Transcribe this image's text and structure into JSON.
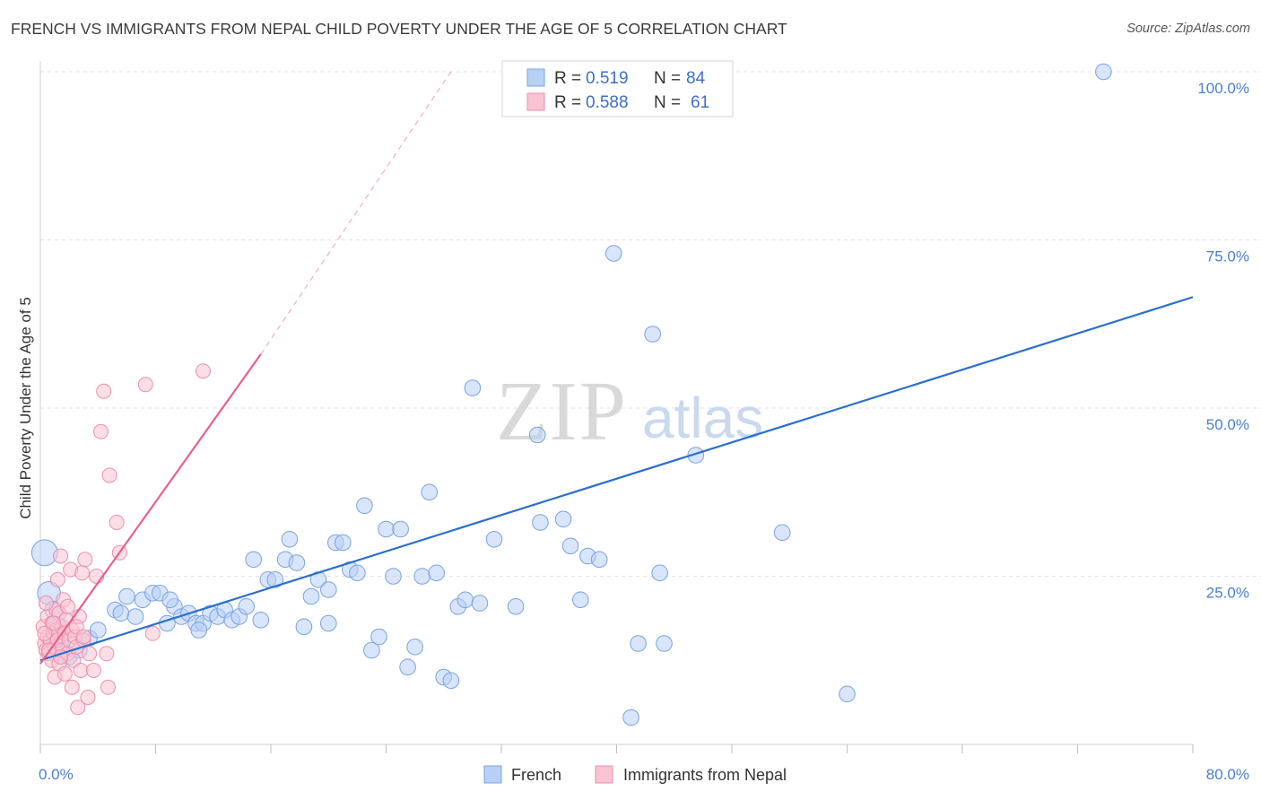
{
  "header": {
    "title": "FRENCH VS IMMIGRANTS FROM NEPAL CHILD POVERTY UNDER THE AGE OF 5 CORRELATION CHART",
    "source": "Source: ZipAtlas.com"
  },
  "watermark": {
    "zip": "ZIP",
    "atlas": "atlas"
  },
  "legend": {
    "r_label": "R =",
    "n_label": "N =",
    "rows": [
      {
        "r": "0.519",
        "n": "84",
        "fill": "#b8d0f5",
        "stroke": "#7aa3e0"
      },
      {
        "r": "0.588",
        "n": "61",
        "fill": "#f9c3d3",
        "stroke": "#ec8fab"
      }
    ]
  },
  "chart_data": {
    "type": "scatter",
    "title": "FRENCH VS IMMIGRANTS FROM NEPAL CHILD POVERTY UNDER THE AGE OF 5 CORRELATION CHART",
    "xlabel": "",
    "ylabel": "Child Poverty Under the Age of 5",
    "xlim": [
      0,
      80
    ],
    "ylim": [
      0,
      100
    ],
    "x_tick_labels": [
      "0.0%",
      "80.0%"
    ],
    "y_tick_labels": [
      "100.0%",
      "75.0%",
      "50.0%",
      "25.0%"
    ],
    "y_tick_values": [
      100,
      75,
      50,
      25
    ],
    "grid": true,
    "legend_position": "top-center",
    "series": [
      {
        "name": "French",
        "color": "#7aa3e0",
        "fill": "#b8d0f5",
        "line_color": "#2a6fd0",
        "r": 0.519,
        "n": 84,
        "trend": {
          "x": [
            0,
            80
          ],
          "y": [
            12.5,
            66.5
          ]
        },
        "points": [
          [
            0.3,
            28.5,
            18
          ],
          [
            0.6,
            22.5,
            16
          ],
          [
            0.9,
            20.0,
            12
          ],
          [
            1.1,
            17.5,
            14
          ],
          [
            1.4,
            15.0,
            11
          ],
          [
            2.0,
            13.0,
            11
          ],
          [
            2.7,
            14.0,
            11
          ],
          [
            3.4,
            15.8,
            11
          ],
          [
            4.0,
            17.0,
            11
          ],
          [
            5.2,
            20.0,
            11
          ],
          [
            5.6,
            19.5,
            11
          ],
          [
            6.0,
            22.0,
            11
          ],
          [
            6.6,
            19.0,
            11
          ],
          [
            7.1,
            21.5,
            11
          ],
          [
            7.8,
            22.5,
            11
          ],
          [
            8.3,
            22.5,
            11
          ],
          [
            8.8,
            18.0,
            11
          ],
          [
            9.3,
            20.5,
            11
          ],
          [
            9.8,
            19.0,
            11
          ],
          [
            10.3,
            19.5,
            11
          ],
          [
            10.8,
            18.0,
            11
          ],
          [
            11.3,
            18.0,
            11
          ],
          [
            11.8,
            19.5,
            11
          ],
          [
            12.3,
            19.0,
            11
          ],
          [
            12.8,
            20.0,
            11
          ],
          [
            13.3,
            18.5,
            11
          ],
          [
            13.8,
            19.0,
            11
          ],
          [
            14.3,
            20.5,
            11
          ],
          [
            15.3,
            18.5,
            11
          ],
          [
            14.8,
            27.5,
            11
          ],
          [
            15.8,
            24.5,
            11
          ],
          [
            16.3,
            24.5,
            11
          ],
          [
            17.0,
            27.5,
            11
          ],
          [
            17.3,
            30.5,
            11
          ],
          [
            17.8,
            27.0,
            11
          ],
          [
            18.3,
            17.5,
            11
          ],
          [
            18.8,
            22.0,
            11
          ],
          [
            19.3,
            24.5,
            11
          ],
          [
            20.0,
            23.0,
            11
          ],
          [
            20.0,
            18.0,
            11
          ],
          [
            20.5,
            30.0,
            11
          ],
          [
            21.0,
            30.0,
            11
          ],
          [
            21.5,
            26.0,
            11
          ],
          [
            22.0,
            25.5,
            11
          ],
          [
            22.5,
            35.5,
            11
          ],
          [
            23.0,
            14.0,
            11
          ],
          [
            23.5,
            16.0,
            11
          ],
          [
            24.0,
            32.0,
            11
          ],
          [
            24.5,
            25.0,
            11
          ],
          [
            25.0,
            32.0,
            11
          ],
          [
            25.5,
            11.5,
            11
          ],
          [
            26.0,
            14.5,
            11
          ],
          [
            26.5,
            25.0,
            11
          ],
          [
            27.0,
            37.5,
            11
          ],
          [
            27.5,
            25.5,
            11
          ],
          [
            28.0,
            10.0,
            11
          ],
          [
            28.5,
            9.5,
            11
          ],
          [
            29.0,
            20.5,
            11
          ],
          [
            29.5,
            21.5,
            11
          ],
          [
            30.0,
            53.0,
            11
          ],
          [
            30.5,
            21.0,
            11
          ],
          [
            31.5,
            30.5,
            11
          ],
          [
            33.0,
            20.5,
            11
          ],
          [
            34.5,
            46.0,
            11
          ],
          [
            34.7,
            33.0,
            11
          ],
          [
            36.3,
            33.5,
            11
          ],
          [
            36.8,
            29.5,
            11
          ],
          [
            37.5,
            21.5,
            11
          ],
          [
            38.0,
            28.0,
            11
          ],
          [
            38.8,
            27.5,
            11
          ],
          [
            39.8,
            73.0,
            11
          ],
          [
            41.0,
            4.0,
            11
          ],
          [
            41.5,
            15.0,
            11
          ],
          [
            42.5,
            61.0,
            11
          ],
          [
            43.0,
            25.5,
            11
          ],
          [
            43.3,
            15.0,
            11
          ],
          [
            45.5,
            43.0,
            11
          ],
          [
            51.5,
            31.5,
            11
          ],
          [
            56.0,
            7.5,
            11
          ],
          [
            73.8,
            100.0,
            11
          ],
          [
            38.2,
            100.0,
            11
          ],
          [
            43.5,
            100.0,
            11
          ],
          [
            11.0,
            17.0,
            11
          ],
          [
            9.0,
            21.5,
            11
          ]
        ]
      },
      {
        "name": "Immigrants from Nepal",
        "color": "#ec8fab",
        "fill": "#f9c3d3",
        "line_color": "#e8608d",
        "r": 0.588,
        "n": 61,
        "trend": {
          "x": [
            0,
            15.3
          ],
          "y": [
            12.0,
            58.0
          ]
        },
        "trend_dashed": {
          "x": [
            15.3,
            28.5
          ],
          "y": [
            58.0,
            100.0
          ]
        },
        "points": [
          [
            0.2,
            17.5,
            10
          ],
          [
            0.3,
            15.0,
            10
          ],
          [
            0.4,
            14.0,
            10
          ],
          [
            0.5,
            16.0,
            10
          ],
          [
            0.5,
            19.0,
            10
          ],
          [
            0.6,
            13.5,
            10
          ],
          [
            0.7,
            15.5,
            10
          ],
          [
            0.8,
            18.0,
            10
          ],
          [
            0.8,
            12.5,
            10
          ],
          [
            0.9,
            16.5,
            10
          ],
          [
            1.0,
            14.5,
            10
          ],
          [
            1.0,
            10.0,
            10
          ],
          [
            1.1,
            20.0,
            10
          ],
          [
            1.1,
            17.0,
            10
          ],
          [
            1.2,
            24.5,
            10
          ],
          [
            1.2,
            15.5,
            10
          ],
          [
            1.3,
            19.5,
            10
          ],
          [
            1.3,
            12.0,
            10
          ],
          [
            1.4,
            28.0,
            10
          ],
          [
            1.5,
            17.5,
            10
          ],
          [
            1.5,
            14.0,
            10
          ],
          [
            1.6,
            21.5,
            10
          ],
          [
            1.7,
            16.5,
            10
          ],
          [
            1.7,
            10.5,
            10
          ],
          [
            1.8,
            18.5,
            10
          ],
          [
            1.9,
            13.5,
            10
          ],
          [
            2.0,
            15.5,
            10
          ],
          [
            2.1,
            26.0,
            10
          ],
          [
            2.2,
            17.0,
            10
          ],
          [
            2.2,
            8.5,
            10
          ],
          [
            2.3,
            12.5,
            10
          ],
          [
            2.4,
            16.0,
            10
          ],
          [
            2.5,
            14.5,
            10
          ],
          [
            2.6,
            5.5,
            10
          ],
          [
            2.7,
            19.0,
            10
          ],
          [
            2.8,
            11.0,
            10
          ],
          [
            2.9,
            25.5,
            10
          ],
          [
            3.0,
            15.5,
            10
          ],
          [
            3.1,
            27.5,
            10
          ],
          [
            3.3,
            7.0,
            10
          ],
          [
            3.4,
            13.5,
            10
          ],
          [
            3.7,
            11.0,
            10
          ],
          [
            3.9,
            25.0,
            10
          ],
          [
            4.2,
            46.5,
            10
          ],
          [
            4.4,
            52.5,
            10
          ],
          [
            4.6,
            13.5,
            10
          ],
          [
            4.7,
            8.5,
            10
          ],
          [
            4.8,
            40.0,
            10
          ],
          [
            5.3,
            33.0,
            10
          ],
          [
            5.5,
            28.5,
            10
          ],
          [
            7.3,
            53.5,
            10
          ],
          [
            7.8,
            16.5,
            10
          ],
          [
            11.3,
            55.5,
            10
          ],
          [
            0.4,
            21.0,
            10
          ],
          [
            0.9,
            18.0,
            10
          ],
          [
            1.4,
            13.0,
            10
          ],
          [
            1.9,
            20.5,
            10
          ],
          [
            2.5,
            17.5,
            10
          ],
          [
            3.0,
            16.0,
            10
          ],
          [
            0.3,
            16.5,
            10
          ],
          [
            0.6,
            14.0,
            10
          ]
        ]
      }
    ]
  }
}
